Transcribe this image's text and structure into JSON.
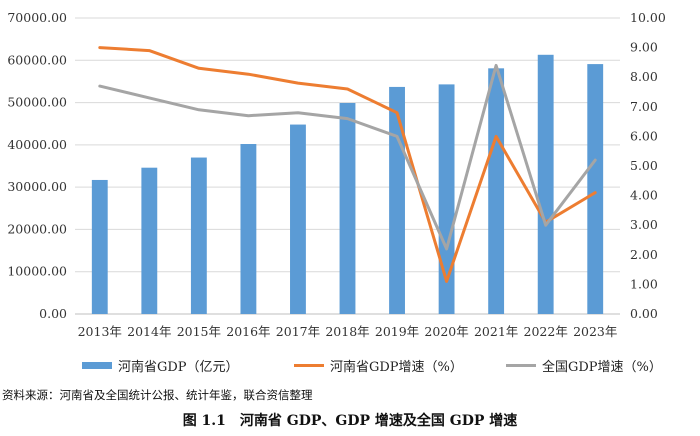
{
  "chart_data": {
    "type": "bar+line",
    "categories": [
      "2013年",
      "2014年",
      "2015年",
      "2016年",
      "2017年",
      "2018年",
      "2019年",
      "2020年",
      "2021年",
      "2022年",
      "2023年"
    ],
    "left_axis": {
      "min": 0,
      "max": 70000,
      "step": 10000,
      "tick_labels": [
        "0.00",
        "10000.00",
        "20000.00",
        "30000.00",
        "40000.00",
        "50000.00",
        "60000.00",
        "70000.00"
      ]
    },
    "right_axis": {
      "min": 0,
      "max": 10,
      "step": 1,
      "tick_labels": [
        "0.00",
        "1.00",
        "2.00",
        "3.00",
        "4.00",
        "5.00",
        "6.00",
        "7.00",
        "8.00",
        "9.00",
        "10.00"
      ]
    },
    "series": [
      {
        "name": "河南省GDP（亿元）",
        "type": "bar",
        "axis": "left",
        "color": "#5B9BD5",
        "values": [
          31700,
          34600,
          37000,
          40200,
          44800,
          49900,
          53700,
          54300,
          58100,
          61300,
          59100
        ]
      },
      {
        "name": "河南省GDP增速（%）",
        "type": "line",
        "axis": "right",
        "color": "#ED7D31",
        "values": [
          9.0,
          8.9,
          8.3,
          8.1,
          7.8,
          7.6,
          6.8,
          1.1,
          6.0,
          3.1,
          4.1
        ]
      },
      {
        "name": "全国GDP增速（%）",
        "type": "line",
        "axis": "right",
        "color": "#A5A5A5",
        "values": [
          7.7,
          7.3,
          6.9,
          6.7,
          6.8,
          6.6,
          6.0,
          2.2,
          8.4,
          3.0,
          5.2
        ]
      }
    ],
    "grid": true,
    "legend": "bottom"
  },
  "source_note": "资料来源：河南省及全国统计公报、统计年鉴，联合资信整理",
  "caption": "图 1.1　河南省 GDP、GDP 增速及全国 GDP 增速"
}
